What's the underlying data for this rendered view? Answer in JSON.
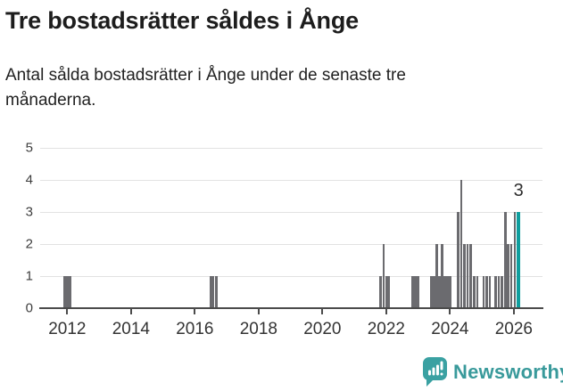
{
  "header": {
    "title": "Tre bostadsrätter såldes i Ånge",
    "subtitle": "Antal sålda bostadsrätter i Ånge under de senaste tre månaderna."
  },
  "chart_data": {
    "type": "bar",
    "title": "Tre bostadsrätter såldes i Ånge",
    "subtitle": "Antal sålda bostadsrätter i Ånge under de senaste tre månaderna.",
    "xlim": [
      2011.15,
      2026.9
    ],
    "ylim": [
      0,
      5
    ],
    "yticks": [
      0,
      1,
      2,
      3,
      4,
      5
    ],
    "xticks": [
      2012,
      2014,
      2016,
      2018,
      2020,
      2022,
      2024,
      2026
    ],
    "grid": "horizontal-only",
    "legend": "none",
    "bar_color": "#6b6b6f",
    "highlight_color": "#0f9e9e",
    "axis_color": "#4b4b4b",
    "gridline_color": "#e2e2e2",
    "points": [
      {
        "x": 2011.92,
        "v": 1
      },
      {
        "x": 2012.0,
        "v": 1
      },
      {
        "x": 2012.08,
        "v": 1
      },
      {
        "x": 2016.5,
        "v": 1
      },
      {
        "x": 2016.58,
        "v": 1
      },
      {
        "x": 2016.67,
        "v": 1
      },
      {
        "x": 2021.83,
        "v": 1
      },
      {
        "x": 2021.92,
        "v": 2
      },
      {
        "x": 2022.0,
        "v": 1
      },
      {
        "x": 2022.08,
        "v": 1
      },
      {
        "x": 2022.83,
        "v": 1
      },
      {
        "x": 2022.92,
        "v": 1
      },
      {
        "x": 2023.0,
        "v": 1
      },
      {
        "x": 2023.42,
        "v": 1
      },
      {
        "x": 2023.5,
        "v": 1
      },
      {
        "x": 2023.58,
        "v": 2
      },
      {
        "x": 2023.67,
        "v": 1
      },
      {
        "x": 2023.75,
        "v": 2
      },
      {
        "x": 2023.83,
        "v": 1
      },
      {
        "x": 2023.92,
        "v": 1
      },
      {
        "x": 2024.0,
        "v": 1
      },
      {
        "x": 2024.25,
        "v": 3
      },
      {
        "x": 2024.35,
        "v": 4
      },
      {
        "x": 2024.46,
        "v": 2
      },
      {
        "x": 2024.55,
        "v": 2
      },
      {
        "x": 2024.65,
        "v": 2
      },
      {
        "x": 2024.76,
        "v": 1
      },
      {
        "x": 2024.86,
        "v": 1
      },
      {
        "x": 2025.05,
        "v": 1
      },
      {
        "x": 2025.15,
        "v": 1
      },
      {
        "x": 2025.25,
        "v": 1
      },
      {
        "x": 2025.43,
        "v": 1
      },
      {
        "x": 2025.53,
        "v": 1
      },
      {
        "x": 2025.63,
        "v": 1
      },
      {
        "x": 2025.74,
        "v": 3
      },
      {
        "x": 2025.83,
        "v": 2
      },
      {
        "x": 2025.92,
        "v": 2
      },
      {
        "x": 2026.03,
        "v": 3
      }
    ],
    "highlight_point": {
      "x": 2026.15,
      "v": 3,
      "label": "3"
    }
  },
  "footer": {
    "logo_text": "Newsworthy",
    "logo_color": "#399a9b",
    "logo_icon": "newsworthy-speech-bubble-bar-chart-icon"
  }
}
